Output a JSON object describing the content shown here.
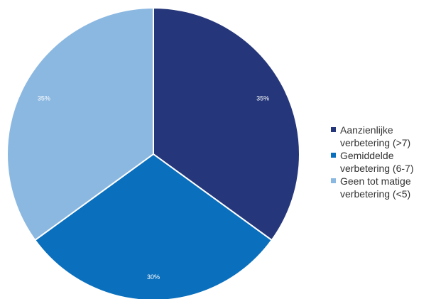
{
  "chart_data": {
    "type": "pie",
    "categories": [
      "Aanzienlijke verbetering (>7)",
      "Gemiddelde verbetering (6-7)",
      "Geen tot matige verbetering (<5)"
    ],
    "values": [
      35,
      30,
      35
    ],
    "data_labels": [
      "35%",
      "30%",
      "35%"
    ],
    "colors": [
      "#25367a",
      "#0a6fbd",
      "#8bb8e1"
    ],
    "legend_position": "right",
    "legend": [
      {
        "lines": [
          "Aanzienlijke",
          "verbetering (>7)"
        ]
      },
      {
        "lines": [
          "Gemiddelde",
          "verbetering (6-7)"
        ]
      },
      {
        "lines": [
          "Geen tot matige",
          "verbetering (<5)"
        ]
      }
    ],
    "title": ""
  }
}
